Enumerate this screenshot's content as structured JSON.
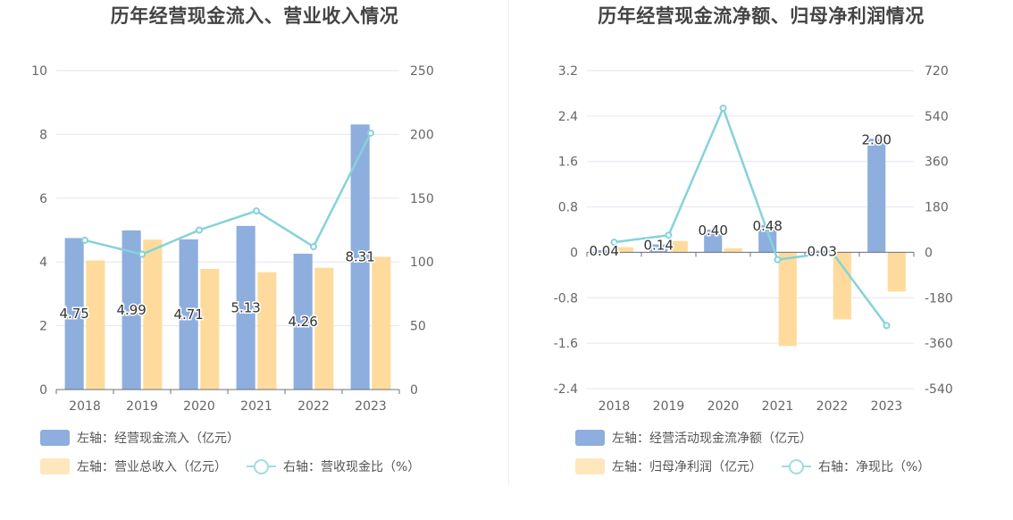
{
  "chart_data": [
    {
      "type": "bar",
      "title": "历年经营现金流入、营业收入情况",
      "categories": [
        "2018",
        "2019",
        "2020",
        "2021",
        "2022",
        "2023"
      ],
      "left_axis": {
        "ylim": [
          0,
          10
        ],
        "ticks": [
          "0",
          "2",
          "4",
          "6",
          "8",
          "10"
        ]
      },
      "right_axis": {
        "ylim": [
          0,
          250
        ],
        "ticks": [
          "0",
          "50",
          "100",
          "150",
          "200",
          "250"
        ]
      },
      "grid": true,
      "legend_position": "bottom-left",
      "series": [
        {
          "name": "左轴：经营现金流入（亿元）",
          "type": "bar",
          "axis": "left",
          "color": "#8eaedd",
          "values": [
            4.75,
            4.99,
            4.71,
            5.13,
            4.26,
            8.31
          ],
          "labels": [
            "4.75",
            "4.99",
            "4.71",
            "5.13",
            "4.26",
            "8.31"
          ]
        },
        {
          "name": "左轴：营业总收入（亿元）",
          "type": "bar",
          "axis": "left",
          "color": "#fedb9c",
          "values": [
            4.05,
            4.7,
            3.78,
            3.68,
            3.82,
            4.16
          ]
        },
        {
          "name": "右轴：营收现金比（%）",
          "type": "line",
          "axis": "right",
          "color": "#85d2d9",
          "values": [
            117,
            106,
            125,
            140,
            112,
            201
          ]
        }
      ]
    },
    {
      "type": "bar",
      "title": "历年经营现金流净额、归母净利润情况",
      "categories": [
        "2018",
        "2019",
        "2020",
        "2021",
        "2022",
        "2023"
      ],
      "left_axis": {
        "ylim": [
          -2.4,
          3.2
        ],
        "ticks": [
          "3.2",
          "2.4",
          "1.6",
          "0.8",
          "0",
          "-0.8",
          "-1.6",
          "-2.4"
        ]
      },
      "right_axis": {
        "ylim": [
          -540,
          720
        ],
        "ticks": [
          "720",
          "540",
          "360",
          "180",
          "0",
          "-180",
          "-360",
          "-540"
        ]
      },
      "grid": true,
      "legend_position": "bottom-left",
      "series": [
        {
          "name": "左轴：经营活动现金流净额（亿元）",
          "type": "bar",
          "axis": "left",
          "color": "#8eaedd",
          "values": [
            0.04,
            0.14,
            0.4,
            0.48,
            0.03,
            2.0
          ],
          "labels": [
            "0.04",
            "0.14",
            "0.40",
            "0.48",
            "0.03",
            "2.00"
          ]
        },
        {
          "name": "左轴：归母净利润（亿元）",
          "type": "bar",
          "axis": "left",
          "color": "#fedb9c",
          "values": [
            0.09,
            0.2,
            0.07,
            -1.65,
            -1.18,
            -0.69
          ]
        },
        {
          "name": "右轴：净现比（%）",
          "type": "line",
          "axis": "right",
          "color": "#85d2d9",
          "values": [
            40,
            68,
            571,
            -29,
            0,
            -290
          ]
        }
      ]
    }
  ]
}
